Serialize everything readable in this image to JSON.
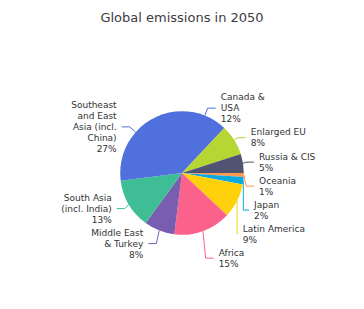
{
  "chart_data": {
    "type": "pie",
    "title": "Global emissions in 2050",
    "categories": [
      "Canada &\nUSA\n12%",
      "Enlarged EU\n8%",
      "Russia & CIS\n5%",
      "Oceania\n1%",
      "Japan\n2%",
      "Latin America\n9%",
      "Africa\n15%",
      "Middle East\n& Turkey\n8%",
      "South Asia\n(incl. India)\n13%",
      "Southeast\nand East\nAsia (incl.\nChina)\n27%"
    ],
    "values": [
      12,
      8,
      5,
      1,
      2,
      9,
      15,
      8,
      13,
      27
    ]
  }
}
